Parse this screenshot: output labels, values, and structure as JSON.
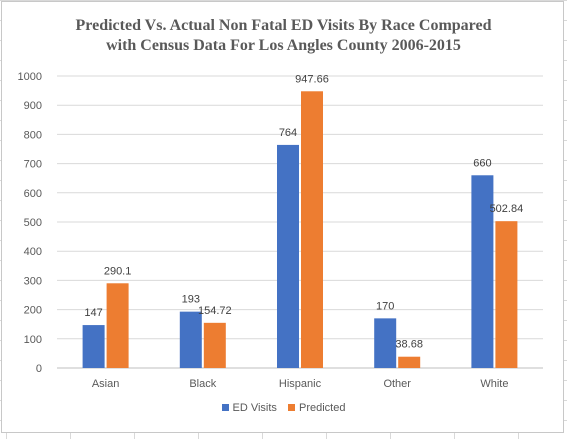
{
  "chart_data": {
    "type": "bar",
    "title_lines": [
      "Predicted Vs. Actual Non Fatal ED Visits By Race Compared",
      "with Census Data For Los Angles County 2006-2015"
    ],
    "categories": [
      "Asian",
      "Black",
      "Hispanic",
      "Other",
      "White"
    ],
    "series": [
      {
        "name": "ED Visits",
        "values": [
          147,
          193,
          764,
          170,
          660
        ],
        "labels": [
          "147",
          "193",
          "764",
          "170",
          "660"
        ],
        "color": "#4472c4"
      },
      {
        "name": "Predicted",
        "values": [
          290.1,
          154.72,
          947.66,
          38.68,
          502.84
        ],
        "labels": [
          "290.1",
          "154.72",
          "947.66",
          "38.68",
          "502.84"
        ],
        "color": "#ed7d31"
      }
    ],
    "ylim": [
      0,
      1000
    ],
    "yticks": [
      0,
      100,
      200,
      300,
      400,
      500,
      600,
      700,
      800,
      900,
      1000
    ],
    "grid": true,
    "legend_position": "bottom",
    "xlabel": "",
    "ylabel": ""
  }
}
